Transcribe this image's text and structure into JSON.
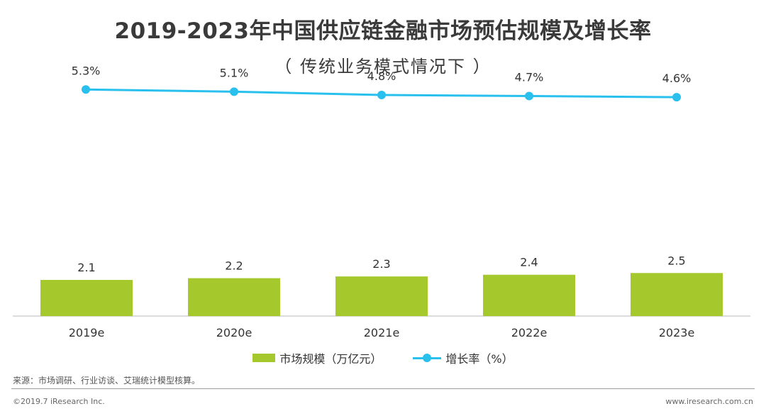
{
  "header": {
    "title": "2019-2023年中国供应链金融市场预估规模及增长率",
    "subtitle": "（ 传统业务模式情况下 ）"
  },
  "colors": {
    "bar": "#a5c92c",
    "line": "#29c0ee",
    "axis": "#c8c8c8"
  },
  "chart_data": {
    "type": "bar",
    "title": "2019-2023年中国供应链金融市场预估规模及增长率",
    "categories": [
      "2019e",
      "2020e",
      "2021e",
      "2022e",
      "2023e"
    ],
    "series": [
      {
        "name": "市场规模（万亿元）",
        "type": "bar",
        "values": [
          2.1,
          2.2,
          2.3,
          2.4,
          2.5
        ],
        "labels": [
          "2.1",
          "2.2",
          "2.3",
          "2.4",
          "2.5"
        ]
      },
      {
        "name": "增长率（%）",
        "type": "line",
        "values": [
          5.3,
          5.1,
          4.8,
          4.7,
          4.6
        ],
        "labels": [
          "5.3%",
          "5.1%",
          "4.8%",
          "4.7%",
          "4.6%"
        ]
      }
    ],
    "bar_ylim": [
      0,
      12
    ],
    "line_ylim": [
      -4,
      7
    ]
  },
  "legend": {
    "bar_label": "市场规模（万亿元）",
    "line_label": "增长率（%）"
  },
  "footer": {
    "source": "来源：市场调研、行业访谈、艾瑞统计模型核算。",
    "copyright": "©2019.7 iResearch Inc.",
    "website": "www.iresearch.com.cn"
  }
}
